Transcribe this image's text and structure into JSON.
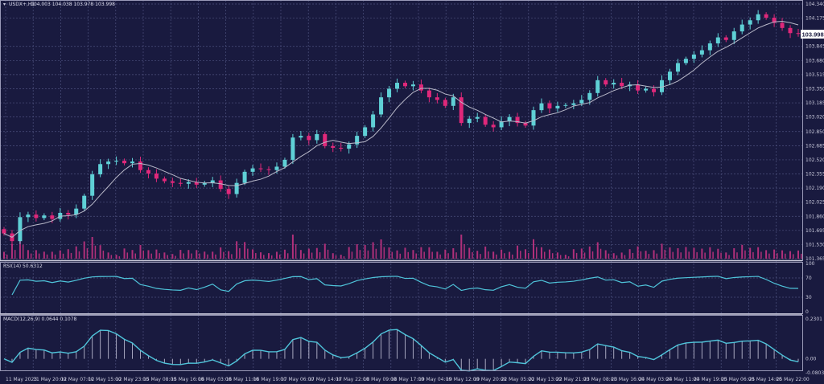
{
  "header": {
    "symbol": "USDX+,H1",
    "ohlc": "104.003 104.038 103.978 103.998"
  },
  "colors": {
    "background": "#191a3f",
    "bull": "#5fd0d6",
    "bear": "#e0287a",
    "grid": "#4d507e",
    "ma": "#b9b9c9",
    "indicator": "#4fc4da",
    "volume": "#b0307a"
  },
  "chart_data": [
    {
      "type": "candlestick",
      "title": "USDX+,H1",
      "current_price": "103.998",
      "ylim": [
        101.365,
        104.34
      ],
      "y_ticks": [
        "104.340",
        "104.175",
        "103.845",
        "103.680",
        "103.515",
        "103.350",
        "103.185",
        "103.020",
        "102.850",
        "102.685",
        "102.520",
        "102.355",
        "102.190",
        "102.025",
        "101.860",
        "101.695",
        "101.530",
        "101.365"
      ],
      "x_ticks": [
        "11 May 2023",
        "11 May 20:00",
        "12 May 07:00",
        "12 May 15:00",
        "12 May 23:00",
        "15 May 08:00",
        "15 May 16:00",
        "16 May 03:00",
        "16 May 11:00",
        "16 May 19:00",
        "17 May 06:00",
        "17 May 14:00",
        "17 May 22:00",
        "18 May 09:00",
        "18 May 17:00",
        "19 May 04:00",
        "19 May 12:00",
        "19 May 20:00",
        "22 May 05:00",
        "22 May 13:00",
        "22 May 21:00",
        "23 May 08:00",
        "23 May 16:00",
        "24 May 03:00",
        "24 May 11:00",
        "24 May 19:00",
        "25 May 06:00",
        "25 May 14:00",
        "25 May 22:00"
      ],
      "close": [
        101.66,
        101.57,
        101.85,
        101.88,
        101.84,
        101.87,
        101.83,
        101.9,
        101.88,
        101.95,
        102.1,
        102.35,
        102.47,
        102.5,
        102.51,
        102.48,
        102.5,
        102.4,
        102.36,
        102.3,
        102.27,
        102.25,
        102.24,
        102.26,
        102.23,
        102.25,
        102.28,
        102.18,
        102.12,
        102.25,
        102.38,
        102.42,
        102.41,
        102.4,
        102.44,
        102.52,
        102.78,
        102.8,
        102.75,
        102.82,
        102.68,
        102.66,
        102.65,
        102.7,
        102.8,
        102.9,
        103.05,
        103.25,
        103.35,
        103.42,
        103.38,
        103.4,
        103.33,
        103.25,
        103.22,
        103.15,
        103.25,
        102.95,
        103.0,
        103.02,
        102.93,
        102.9,
        102.97,
        103.02,
        102.95,
        102.92,
        103.1,
        103.18,
        103.12,
        103.15,
        103.16,
        103.18,
        103.22,
        103.3,
        103.45,
        103.4,
        103.42,
        103.38,
        103.4,
        103.33,
        103.35,
        103.31,
        103.45,
        103.55,
        103.65,
        103.7,
        103.75,
        103.8,
        103.88,
        103.95,
        103.92,
        104.02,
        104.1,
        104.15,
        104.22,
        104.18,
        104.12,
        104.06,
        104.0,
        103.998
      ],
      "overlays": [
        "moving-average"
      ],
      "volume": true,
      "grid": true
    },
    {
      "type": "line",
      "title": "RSI(14) 50.6312",
      "ylim": [
        0,
        100
      ],
      "y_ticks": [
        "100",
        "70",
        "30",
        "0"
      ]
    },
    {
      "type": "line+bar",
      "title": "MACD(12,26,9) 0.0644 0.1078",
      "ylim": [
        -0.0803,
        0.2301
      ],
      "y_ticks": [
        "0.2301",
        "0.00",
        "-0.0803"
      ]
    }
  ]
}
